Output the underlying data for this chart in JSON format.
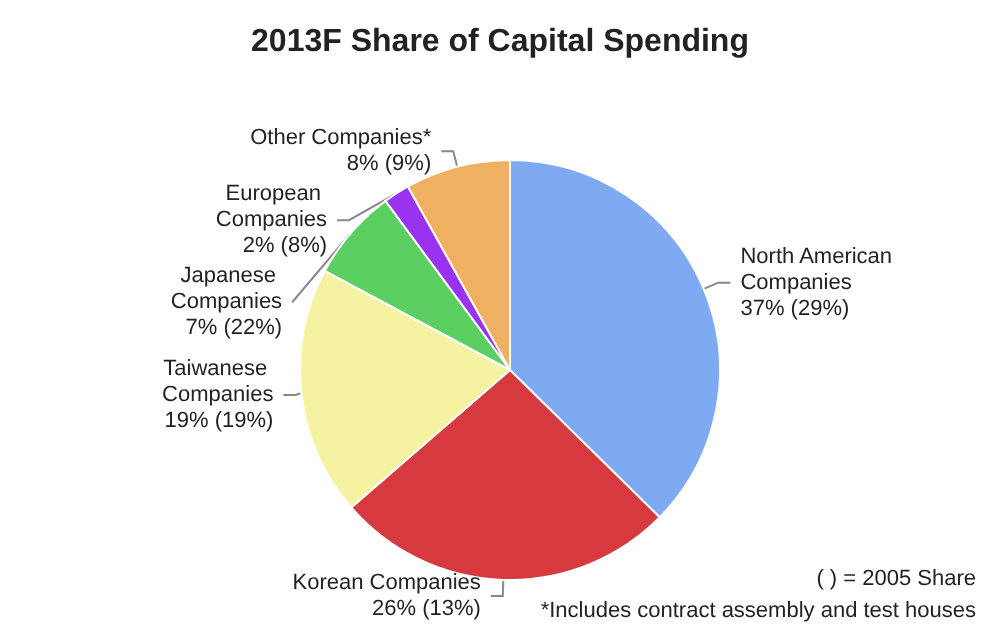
{
  "chart_data": {
    "type": "pie",
    "title": "2013F Share of Capital Spending",
    "categories": [
      "North American Companies",
      "Korean Companies",
      "Taiwanese Companies",
      "Japanese Companies",
      "European Companies",
      "Other Companies*"
    ],
    "values": [
      37,
      26,
      19,
      7,
      2,
      8
    ],
    "value_labels": [
      "37% (29%)",
      "26% (13%)",
      "19% (19%)",
      "7% (22%)",
      "2% (8%)",
      "8% (9%)"
    ],
    "colors": [
      "#7eaaf2",
      "#d63a3e",
      "#f5f2a2",
      "#5ccf62",
      "#9a33f0",
      "#f0b062"
    ],
    "annotations": [
      "( ) = 2005 Share",
      "*Includes contract assembly and test houses"
    ],
    "legend": false
  }
}
